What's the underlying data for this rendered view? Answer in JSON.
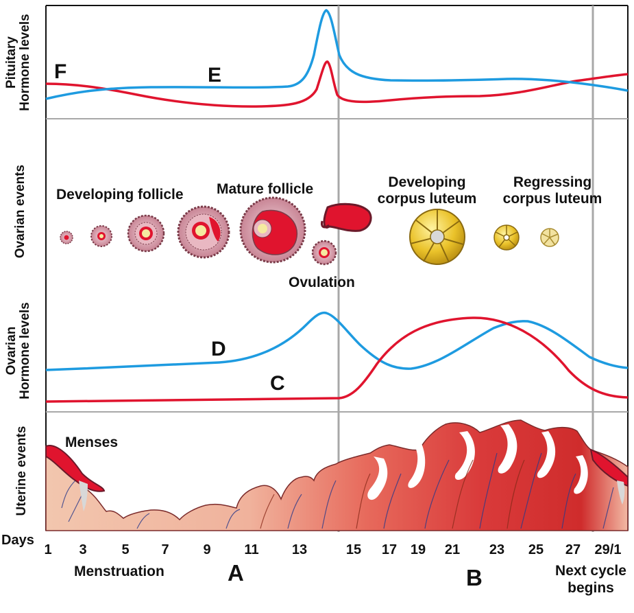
{
  "row_labels": {
    "pituitary_line1": "Pituitary",
    "pituitary_line2": "Hormone levels",
    "ovarian_events": "Ovarian events",
    "ovarian_hormone_line1": "Ovarian",
    "ovarian_hormone_line2": "Hormone levels",
    "uterine_events": "Uterine events"
  },
  "curve_letters": {
    "F": "F",
    "E": "E",
    "D": "D",
    "C": "C"
  },
  "ovarian_stages": {
    "developing_follicle": "Developing follicle",
    "mature_follicle": "Mature follicle",
    "ovulation": "Ovulation",
    "developing_corpus_luteum_1": "Developing",
    "developing_corpus_luteum_2": "corpus luteum",
    "regressing_corpus_luteum_1": "Regressing",
    "regressing_corpus_luteum_2": "corpus luteum"
  },
  "uterine": {
    "menses": "Menses"
  },
  "days_axis": {
    "label": "Days",
    "ticks": [
      "1",
      "3",
      "5",
      "7",
      "9",
      "11",
      "13",
      "15",
      "17",
      "19",
      "21",
      "23",
      "25",
      "27",
      "29/1"
    ]
  },
  "phase_labels": {
    "menstruation": "Menstruation",
    "A": "A",
    "B": "B",
    "next_cycle_1": "Next cycle",
    "next_cycle_2": "begins"
  },
  "colors": {
    "blue_curve": "#1e9be0",
    "red_curve": "#e0142e",
    "grid": "#a8a8a8",
    "follicle_fill": "#d9a9b4",
    "corpus_luteum_fill": "#eac22a",
    "endometrium": "#d93a3a"
  }
}
